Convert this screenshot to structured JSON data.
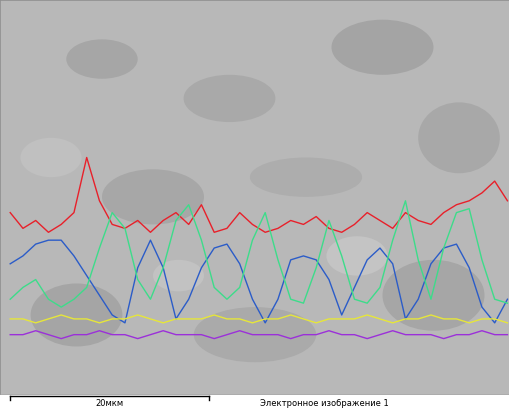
{
  "chart_data": {
    "type": "line",
    "x": [
      2,
      4.5,
      7,
      9.5,
      12,
      14.5,
      17,
      19.5,
      22,
      24.5,
      27,
      29.5,
      32,
      34.5,
      37,
      39.5,
      42,
      44.5,
      47,
      49.5,
      52,
      54.5,
      57,
      59.5,
      62,
      64.5,
      67,
      69.5,
      72,
      74.5,
      77,
      79.5,
      82,
      84.5,
      87,
      89.5,
      92,
      94.5,
      97,
      99.5
    ],
    "xlim": [
      0,
      100
    ],
    "ylim": [
      0,
      100
    ],
    "tick_labels": false,
    "series": [
      {
        "color": "#e8202a",
        "values": [
          46,
          42,
          44,
          41,
          43,
          46,
          60,
          49,
          43,
          42,
          44,
          41,
          44,
          46,
          43,
          48,
          41,
          42,
          46,
          43,
          41,
          42,
          44,
          43,
          45,
          42,
          41,
          43,
          46,
          44,
          42,
          46,
          44,
          43,
          46,
          48,
          49,
          51,
          54,
          49
        ]
      },
      {
        "color": "#2b5cc8",
        "values": [
          33,
          35,
          38,
          39,
          39,
          35,
          30,
          25,
          20,
          18,
          32,
          39,
          32,
          19,
          24,
          32,
          37,
          38,
          33,
          24,
          18,
          24,
          34,
          35,
          34,
          29,
          20,
          27,
          34,
          37,
          33,
          19,
          24,
          33,
          37,
          38,
          32,
          22,
          18,
          24
        ]
      },
      {
        "color": "#3ddc8a",
        "values": [
          24,
          27,
          29,
          24,
          22,
          24,
          27,
          37,
          46,
          42,
          29,
          24,
          32,
          44,
          48,
          39,
          27,
          24,
          27,
          39,
          46,
          34,
          24,
          23,
          32,
          44,
          35,
          24,
          23,
          27,
          39,
          49,
          34,
          24,
          37,
          46,
          47,
          34,
          24,
          23
        ]
      },
      {
        "color": "#e6e63a",
        "values": [
          19,
          19,
          18,
          19,
          20,
          19,
          19,
          18,
          19,
          19,
          20,
          19,
          18,
          19,
          19,
          19,
          20,
          19,
          19,
          18,
          19,
          19,
          20,
          19,
          18,
          19,
          19,
          19,
          20,
          19,
          18,
          19,
          19,
          20,
          19,
          19,
          18,
          19,
          19,
          18
        ]
      },
      {
        "color": "#9b30d9",
        "values": [
          15,
          15,
          16,
          15,
          14,
          15,
          15,
          16,
          15,
          15,
          14,
          15,
          16,
          15,
          15,
          15,
          14,
          15,
          16,
          15,
          15,
          15,
          14,
          15,
          15,
          16,
          15,
          15,
          14,
          15,
          16,
          15,
          15,
          15,
          14,
          15,
          15,
          16,
          15,
          15
        ]
      }
    ]
  },
  "scale_bar": {
    "label": "20мкм"
  },
  "caption": "Электронное изображение 1"
}
